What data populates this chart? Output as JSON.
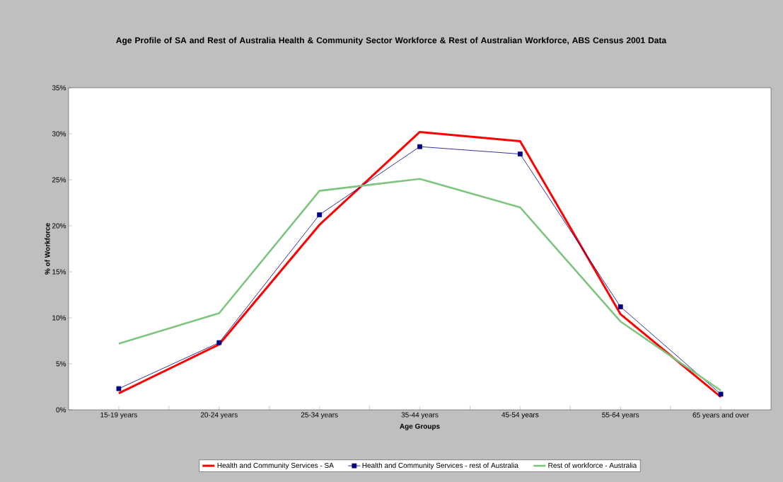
{
  "chart_data": {
    "type": "line",
    "title": "Age Profile of SA and Rest of Australia Health & Community Sector Workforce & Rest of Australian Workforce, ABS Census 2001 Data",
    "xlabel": "Age Groups",
    "ylabel": "% of Workforce",
    "categories": [
      "15-19 years",
      "20-24 years",
      "25-34 years",
      "35-44 years",
      "45-54 years",
      "55-64 years",
      "65 years and over"
    ],
    "series": [
      {
        "name": "Health and Community Services - SA",
        "color": "#ff0000",
        "marker": "none",
        "values": [
          1.8,
          7.1,
          20.1,
          30.2,
          29.2,
          10.4,
          1.4
        ]
      },
      {
        "name": "Health and Community Services - rest of Australia",
        "color": "#000080",
        "marker": "square",
        "values": [
          2.3,
          7.3,
          21.2,
          28.6,
          27.8,
          11.2,
          1.7
        ]
      },
      {
        "name": "Rest of workforce - Australia",
        "color": "#7fc47f",
        "marker": "none",
        "values": [
          7.2,
          10.5,
          23.8,
          25.1,
          22.0,
          9.6,
          2.1
        ]
      }
    ],
    "ylim": [
      0,
      35
    ],
    "yticks": [
      {
        "value": 0,
        "label": "0%"
      },
      {
        "value": 5,
        "label": "5%"
      },
      {
        "value": 10,
        "label": "10%"
      },
      {
        "value": 15,
        "label": "15%"
      },
      {
        "value": 20,
        "label": "20%"
      },
      {
        "value": 25,
        "label": "25%"
      },
      {
        "value": 30,
        "label": "30%"
      },
      {
        "value": 35,
        "label": "35%"
      }
    ],
    "grid": false,
    "legend": "bottom",
    "line_style": "solid"
  }
}
